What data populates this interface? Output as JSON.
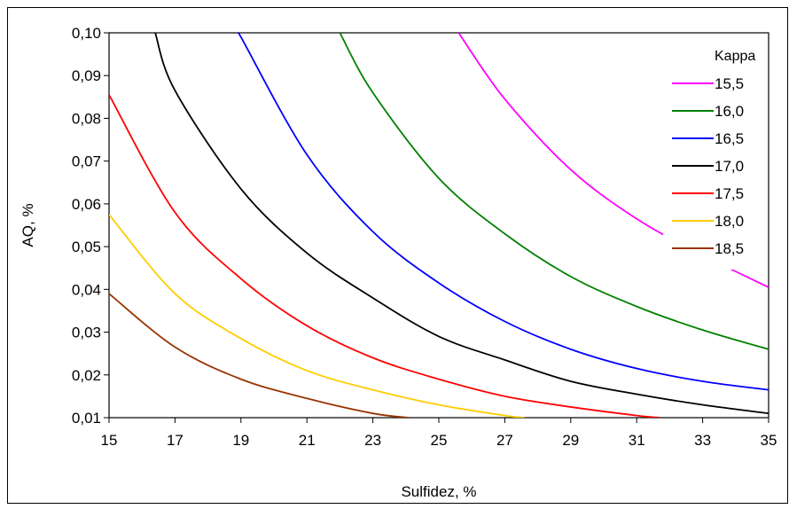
{
  "chart_data": {
    "type": "line",
    "title": "",
    "xlabel": "Sulfidez, %",
    "ylabel": "AQ, %",
    "xlim": [
      15,
      35
    ],
    "ylim": [
      0.01,
      0.1
    ],
    "xticks": [
      "15",
      "17",
      "19",
      "21",
      "23",
      "25",
      "27",
      "29",
      "31",
      "33",
      "35"
    ],
    "yticks": [
      "0,01",
      "0,02",
      "0,03",
      "0,04",
      "0,05",
      "0,06",
      "0,07",
      "0,08",
      "0,09",
      "0,10"
    ],
    "grid": "none",
    "legend_title": "Kappa",
    "legend_position": "right",
    "series": [
      {
        "name": "15,5",
        "color": "#ff00ff",
        "points": [
          [
            25.6,
            0.1
          ],
          [
            27,
            0.0845
          ],
          [
            29,
            0.068
          ],
          [
            31,
            0.0565
          ],
          [
            33,
            0.048
          ],
          [
            35,
            0.0405
          ]
        ]
      },
      {
        "name": "16,0",
        "color": "#008000",
        "points": [
          [
            22.0,
            0.1
          ],
          [
            23,
            0.086
          ],
          [
            25,
            0.066
          ],
          [
            27,
            0.053
          ],
          [
            29,
            0.043
          ],
          [
            31,
            0.036
          ],
          [
            33,
            0.0305
          ],
          [
            35,
            0.026
          ]
        ]
      },
      {
        "name": "16,5",
        "color": "#0000ff",
        "points": [
          [
            18.9,
            0.1
          ],
          [
            19,
            0.099
          ],
          [
            21,
            0.0715
          ],
          [
            23,
            0.0535
          ],
          [
            25,
            0.0415
          ],
          [
            27,
            0.0325
          ],
          [
            29,
            0.026
          ],
          [
            31,
            0.0215
          ],
          [
            33,
            0.0185
          ],
          [
            35,
            0.0165
          ]
        ]
      },
      {
        "name": "17,0",
        "color": "#000000",
        "points": [
          [
            16.4,
            0.1
          ],
          [
            17,
            0.0865
          ],
          [
            19,
            0.0635
          ],
          [
            21,
            0.0485
          ],
          [
            23,
            0.038
          ],
          [
            25,
            0.029
          ],
          [
            27,
            0.0235
          ],
          [
            29,
            0.0185
          ],
          [
            31,
            0.0155
          ],
          [
            33,
            0.013
          ],
          [
            35,
            0.011
          ]
        ]
      },
      {
        "name": "17,5",
        "color": "#ff0000",
        "points": [
          [
            15,
            0.0855
          ],
          [
            17,
            0.058
          ],
          [
            19,
            0.0425
          ],
          [
            21,
            0.0315
          ],
          [
            23,
            0.024
          ],
          [
            25,
            0.019
          ],
          [
            27,
            0.015
          ],
          [
            29,
            0.0125
          ],
          [
            31,
            0.0105
          ],
          [
            31.7,
            0.01
          ]
        ]
      },
      {
        "name": "18,0",
        "color": "#ffcc00",
        "points": [
          [
            15,
            0.0575
          ],
          [
            17,
            0.039
          ],
          [
            19,
            0.0285
          ],
          [
            21,
            0.021
          ],
          [
            23,
            0.0165
          ],
          [
            25,
            0.013
          ],
          [
            27,
            0.0105
          ],
          [
            27.6,
            0.01
          ]
        ]
      },
      {
        "name": "18,5",
        "color": "#993300",
        "points": [
          [
            15,
            0.039
          ],
          [
            17,
            0.0265
          ],
          [
            19,
            0.019
          ],
          [
            21,
            0.0145
          ],
          [
            23,
            0.011
          ],
          [
            24.1,
            0.01
          ]
        ]
      }
    ]
  }
}
